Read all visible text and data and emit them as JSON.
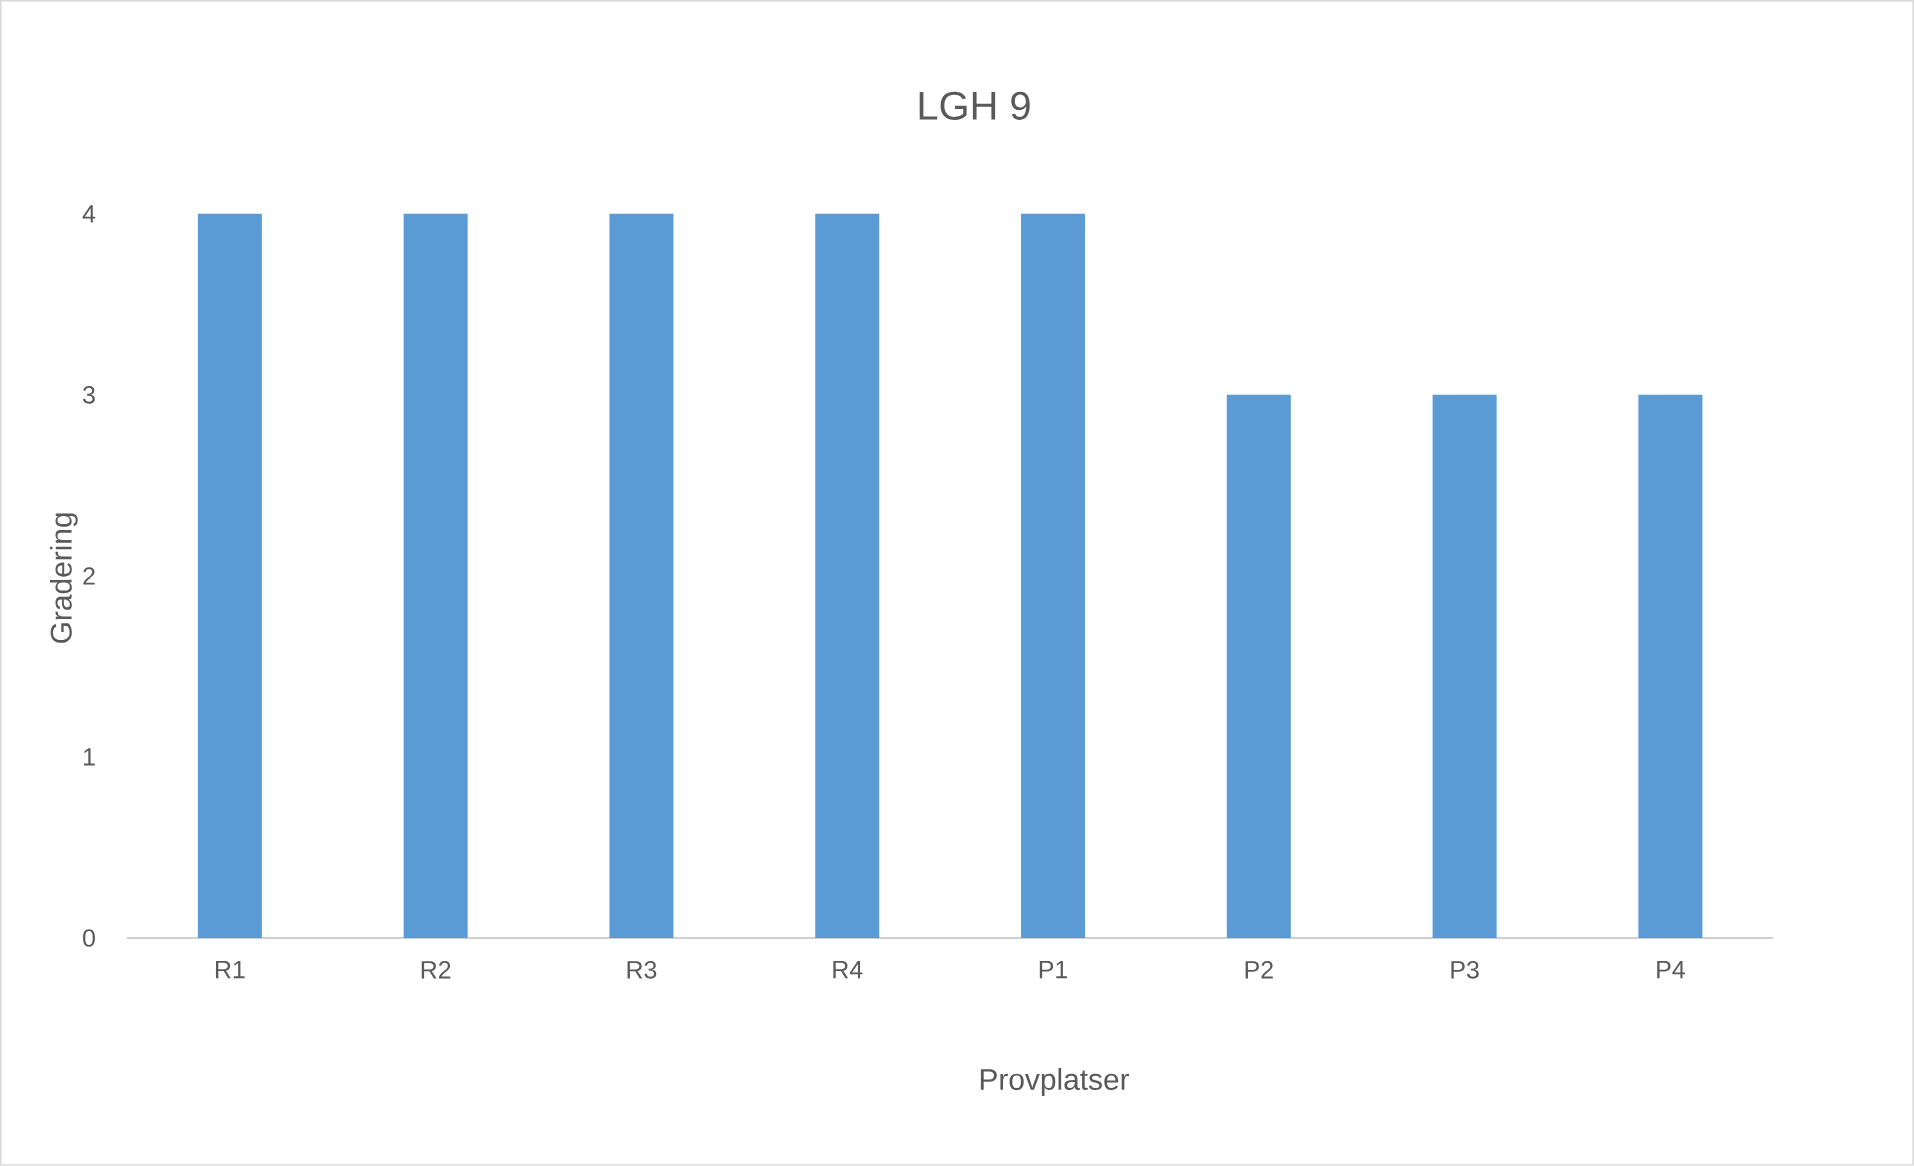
{
  "chart_data": {
    "type": "bar",
    "title": "LGH 9",
    "xlabel": "Provplatser",
    "ylabel": "Gradering",
    "categories": [
      "R1",
      "R2",
      "R3",
      "R4",
      "P1",
      "P2",
      "P3",
      "P4"
    ],
    "values": [
      4,
      4,
      4,
      4,
      4,
      3,
      3,
      3
    ],
    "color": "#5b9bd5",
    "ylim": [
      0,
      4
    ],
    "yticks": [
      0,
      1,
      2,
      3,
      4
    ]
  }
}
